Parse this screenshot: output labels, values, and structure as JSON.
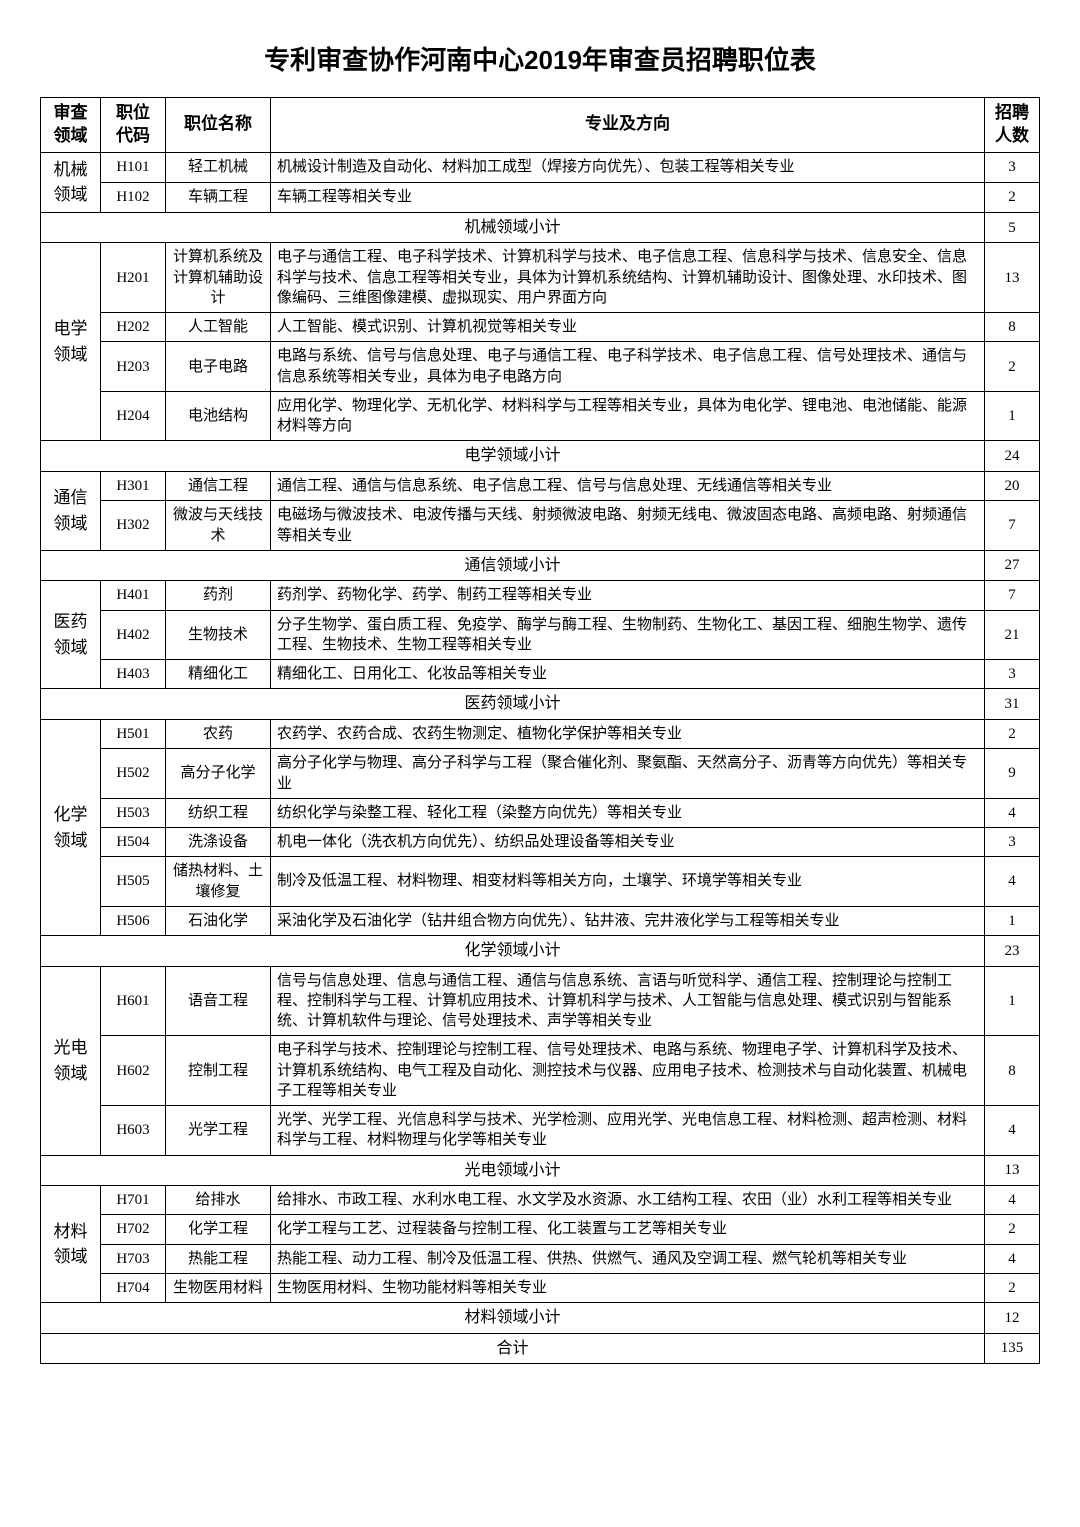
{
  "title": "专利审查协作河南中心2019年审查员招聘职位表",
  "grand_total_label": "合计",
  "grand_total": 135,
  "headers": {
    "domain": "审查领域",
    "code": "职位代码",
    "name": "职位名称",
    "desc": "专业及方向",
    "count": "招聘人数"
  },
  "domains": [
    {
      "name": "机械领域",
      "subtotal_label": "机械领域小计",
      "subtotal": 5,
      "positions": [
        {
          "code": "H101",
          "name": "轻工机械",
          "desc": "机械设计制造及自动化、材料加工成型（焊接方向优先）、包装工程等相关专业",
          "count": 3
        },
        {
          "code": "H102",
          "name": "车辆工程",
          "desc": "车辆工程等相关专业",
          "count": 2
        }
      ]
    },
    {
      "name": "电学领域",
      "subtotal_label": "电学领域小计",
      "subtotal": 24,
      "positions": [
        {
          "code": "H201",
          "name": "计算机系统及计算机辅助设计",
          "desc": "电子与通信工程、电子科学技术、计算机科学与技术、电子信息工程、信息科学与技术、信息安全、信息科学与技术、信息工程等相关专业，具体为计算机系统结构、计算机辅助设计、图像处理、水印技术、图像编码、三维图像建模、虚拟现实、用户界面方向",
          "count": 13
        },
        {
          "code": "H202",
          "name": "人工智能",
          "desc": "人工智能、模式识别、计算机视觉等相关专业",
          "count": 8
        },
        {
          "code": "H203",
          "name": "电子电路",
          "desc": "电路与系统、信号与信息处理、电子与通信工程、电子科学技术、电子信息工程、信号处理技术、通信与信息系统等相关专业，具体为电子电路方向",
          "count": 2
        },
        {
          "code": "H204",
          "name": "电池结构",
          "desc": "应用化学、物理化学、无机化学、材料科学与工程等相关专业，具体为电化学、锂电池、电池储能、能源材料等方向",
          "count": 1
        }
      ]
    },
    {
      "name": "通信领域",
      "subtotal_label": "通信领域小计",
      "subtotal": 27,
      "positions": [
        {
          "code": "H301",
          "name": "通信工程",
          "desc": "通信工程、通信与信息系统、电子信息工程、信号与信息处理、无线通信等相关专业",
          "count": 20
        },
        {
          "code": "H302",
          "name": "微波与天线技术",
          "desc": "电磁场与微波技术、电波传播与天线、射频微波电路、射频无线电、微波固态电路、高频电路、射频通信等相关专业",
          "count": 7
        }
      ]
    },
    {
      "name": "医药领域",
      "subtotal_label": "医药领域小计",
      "subtotal": 31,
      "positions": [
        {
          "code": "H401",
          "name": "药剂",
          "desc": "药剂学、药物化学、药学、制药工程等相关专业",
          "count": 7
        },
        {
          "code": "H402",
          "name": "生物技术",
          "desc": "分子生物学、蛋白质工程、免疫学、酶学与酶工程、生物制药、生物化工、基因工程、细胞生物学、遗传工程、生物技术、生物工程等相关专业",
          "count": 21
        },
        {
          "code": "H403",
          "name": "精细化工",
          "desc": "精细化工、日用化工、化妆品等相关专业",
          "count": 3
        }
      ]
    },
    {
      "name": "化学领域",
      "subtotal_label": "化学领域小计",
      "subtotal": 23,
      "positions": [
        {
          "code": "H501",
          "name": "农药",
          "desc": "农药学、农药合成、农药生物测定、植物化学保护等相关专业",
          "count": 2
        },
        {
          "code": "H502",
          "name": "高分子化学",
          "desc": "高分子化学与物理、高分子科学与工程（聚合催化剂、聚氨酯、天然高分子、沥青等方向优先）等相关专业",
          "count": 9
        },
        {
          "code": "H503",
          "name": "纺织工程",
          "desc": "纺织化学与染整工程、轻化工程（染整方向优先）等相关专业",
          "count": 4
        },
        {
          "code": "H504",
          "name": "洗涤设备",
          "desc": "机电一体化（洗衣机方向优先）、纺织品处理设备等相关专业",
          "count": 3
        },
        {
          "code": "H505",
          "name": "储热材料、土壤修复",
          "desc": "制冷及低温工程、材料物理、相变材料等相关方向，土壤学、环境学等相关专业",
          "count": 4
        },
        {
          "code": "H506",
          "name": "石油化学",
          "desc": "采油化学及石油化学（钻井组合物方向优先）、钻井液、完井液化学与工程等相关专业",
          "count": 1
        }
      ]
    },
    {
      "name": "光电领域",
      "subtotal_label": "光电领域小计",
      "subtotal": 13,
      "positions": [
        {
          "code": "H601",
          "name": "语音工程",
          "desc": "信号与信息处理、信息与通信工程、通信与信息系统、言语与听觉科学、通信工程、控制理论与控制工程、控制科学与工程、计算机应用技术、计算机科学与技术、人工智能与信息处理、模式识别与智能系统、计算机软件与理论、信号处理技术、声学等相关专业",
          "count": 1
        },
        {
          "code": "H602",
          "name": "控制工程",
          "desc": "电子科学与技术、控制理论与控制工程、信号处理技术、电路与系统、物理电子学、计算机科学及技术、计算机系统结构、电气工程及自动化、测控技术与仪器、应用电子技术、检测技术与自动化装置、机械电子工程等相关专业",
          "count": 8
        },
        {
          "code": "H603",
          "name": "光学工程",
          "desc": "光学、光学工程、光信息科学与技术、光学检测、应用光学、光电信息工程、材料检测、超声检测、材料科学与工程、材料物理与化学等相关专业",
          "count": 4
        }
      ]
    },
    {
      "name": "材料领域",
      "subtotal_label": "材料领域小计",
      "subtotal": 12,
      "positions": [
        {
          "code": "H701",
          "name": "给排水",
          "desc": "给排水、市政工程、水利水电工程、水文学及水资源、水工结构工程、农田（业）水利工程等相关专业",
          "count": 4
        },
        {
          "code": "H702",
          "name": "化学工程",
          "desc": "化学工程与工艺、过程装备与控制工程、化工装置与工艺等相关专业",
          "count": 2
        },
        {
          "code": "H703",
          "name": "热能工程",
          "desc": "热能工程、动力工程、制冷及低温工程、供热、供燃气、通风及空调工程、燃气轮机等相关专业",
          "count": 4
        },
        {
          "code": "H704",
          "name": "生物医用材料",
          "desc": "生物医用材料、生物功能材料等相关专业",
          "count": 2
        }
      ]
    }
  ]
}
